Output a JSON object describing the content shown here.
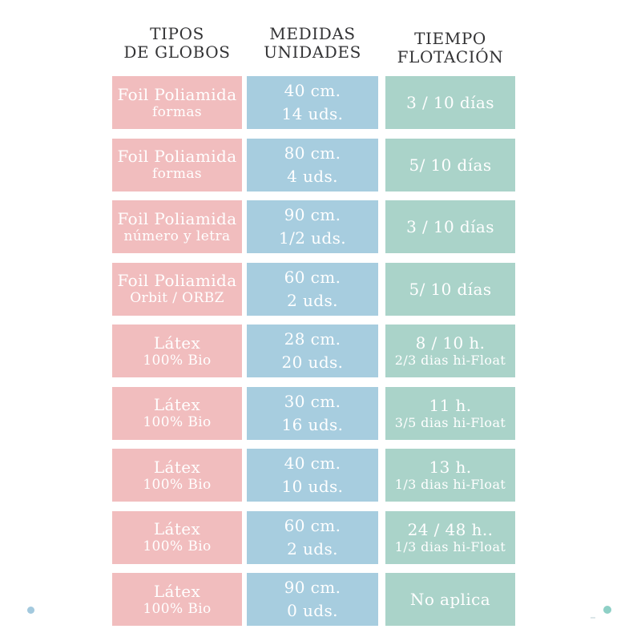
{
  "colors": {
    "background": "#ffffff",
    "pink_cell": "#f1bdbe",
    "blue_cell": "#a7cddf",
    "green_cell": "#aad3c9",
    "header_text": "#333335",
    "cell_text": "#ffffff",
    "dot_bottom_left": "#a3c9de",
    "dot_bottom_right": "#8ed0c6"
  },
  "headers": [
    {
      "line1": "TIPOS",
      "line2": "DE GLOBOS"
    },
    {
      "line1": "MEDIDAS",
      "line2": "UNIDADES"
    },
    {
      "line1": "TIEMPO",
      "line2": "FLOTACIÓN"
    }
  ],
  "rows": [
    {
      "tipo": {
        "line1": "Foil Poliamida",
        "line2": "formas"
      },
      "medida": {
        "line1": "40 cm.",
        "line2": "14 uds."
      },
      "tiempo": {
        "line1": "3 / 10 días",
        "line2": ""
      }
    },
    {
      "tipo": {
        "line1": "Foil Poliamida",
        "line2": "formas"
      },
      "medida": {
        "line1": "80 cm.",
        "line2": "4 uds."
      },
      "tiempo": {
        "line1": "5/ 10 días",
        "line2": ""
      }
    },
    {
      "tipo": {
        "line1": "Foil Poliamida",
        "line2": "número y letra"
      },
      "medida": {
        "line1": "90 cm.",
        "line2": "1/2 uds."
      },
      "tiempo": {
        "line1": "3 / 10 días",
        "line2": ""
      }
    },
    {
      "tipo": {
        "line1": "Foil Poliamida",
        "line2": "Orbit / ORBZ"
      },
      "medida": {
        "line1": "60 cm.",
        "line2": "2 uds."
      },
      "tiempo": {
        "line1": "5/ 10 días",
        "line2": ""
      }
    },
    {
      "tipo": {
        "line1": "Látex",
        "line2": "100% Bio"
      },
      "medida": {
        "line1": "28 cm.",
        "line2": "20 uds."
      },
      "tiempo": {
        "line1": "8 / 10 h.",
        "line2": "2/3 dias hi-Float"
      }
    },
    {
      "tipo": {
        "line1": "Látex",
        "line2": "100% Bio"
      },
      "medida": {
        "line1": "30 cm.",
        "line2": "16 uds."
      },
      "tiempo": {
        "line1": "11 h.",
        "line2": "3/5 dias hi-Float"
      }
    },
    {
      "tipo": {
        "line1": "Látex",
        "line2": "100% Bio"
      },
      "medida": {
        "line1": "40 cm.",
        "line2": "10 uds."
      },
      "tiempo": {
        "line1": "13 h.",
        "line2": "1/3 dias hi-Float"
      }
    },
    {
      "tipo": {
        "line1": "Látex",
        "line2": "100% Bio"
      },
      "medida": {
        "line1": "60 cm.",
        "line2": "2 uds."
      },
      "tiempo": {
        "line1": "24 / 48 h..",
        "line2": "1/3 dias hi-Float"
      }
    },
    {
      "tipo": {
        "line1": "Látex",
        "line2": "100% Bio"
      },
      "medida": {
        "line1": "90 cm.",
        "line2": "0 uds."
      },
      "tiempo": {
        "line1": "No aplica",
        "line2": ""
      }
    }
  ],
  "chart_data": {
    "type": "table",
    "title": "",
    "columns": [
      "TIPOS DE GLOBOS",
      "MEDIDAS UNIDADES",
      "TIEMPO FLOTACIÓN"
    ],
    "rows": [
      [
        "Foil Poliamida formas",
        "40 cm. 14 uds.",
        "3 / 10 días"
      ],
      [
        "Foil Poliamida formas",
        "80 cm. 4 uds.",
        "5/ 10 días"
      ],
      [
        "Foil Poliamida número y letra",
        "90 cm. 1/2 uds.",
        "3 / 10 días"
      ],
      [
        "Foil Poliamida Orbit / ORBZ",
        "60 cm. 2 uds.",
        "5/ 10 días"
      ],
      [
        "Látex 100% Bio",
        "28 cm. 20 uds.",
        "8 / 10 h. 2/3 dias hi-Float"
      ],
      [
        "Látex 100% Bio",
        "30 cm. 16 uds.",
        "11 h. 3/5 dias hi-Float"
      ],
      [
        "Látex 100% Bio",
        "40 cm. 10 uds.",
        "13 h. 1/3 dias hi-Float"
      ],
      [
        "Látex 100% Bio",
        "60 cm. 2 uds.",
        "24 / 48 h.. 1/3 dias hi-Float"
      ],
      [
        "Látex 100% Bio",
        "90 cm. 0 uds.",
        "No aplica"
      ]
    ],
    "layout": {
      "grid": false,
      "cell_colors_by_column": [
        "#f1bdbe",
        "#a7cddf",
        "#aad3c9"
      ]
    }
  }
}
